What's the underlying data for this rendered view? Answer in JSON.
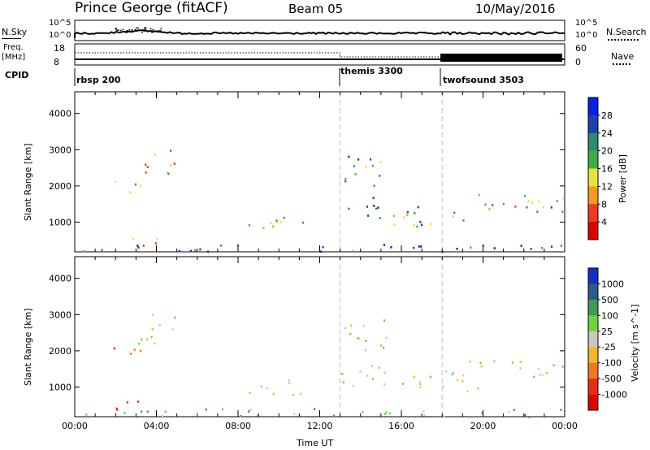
{
  "header": {
    "station": "Prince George (fitACF)",
    "beam": "Beam 05",
    "date": "10/May/2016"
  },
  "top_strip": {
    "nsky_label": "N.Sky",
    "nsearch_label": "N.Search",
    "left_ticks": [
      "10^5",
      "10^0"
    ],
    "right_ticks": [
      "10^5",
      "10^0"
    ],
    "freq_label": "Freq.",
    "freq_unit": "[MHz]",
    "freq_ticks": [
      "18",
      "8"
    ],
    "nave_label": "Nave",
    "nave_ticks": [
      "60",
      "0"
    ],
    "cpid_label": "CPID",
    "cpid_segments": [
      {
        "label": "rbsp 200",
        "start_hour": 0
      },
      {
        "label": "themis 3300",
        "start_hour": 13
      },
      {
        "label": "twofsound 3503",
        "start_hour": 18
      }
    ]
  },
  "colors": {
    "velocity_scatter": "#c8c8c2",
    "axis": "#000000",
    "dash": "#bdbdbd"
  },
  "chart_data": [
    {
      "type": "heatmap",
      "name": "power",
      "xlabel": "",
      "ylabel": "Slant Range [km]",
      "x_ticks": [
        "00:00",
        "04:00",
        "08:00",
        "12:00",
        "16:00",
        "20:00",
        "00:00"
      ],
      "x_range_hours": [
        0,
        24
      ],
      "y_ticks": [
        1000,
        2000,
        3000,
        4000
      ],
      "y_range": [
        180,
        4600
      ],
      "colorbar": {
        "label": "Power [dB]",
        "ticks": [
          "4",
          "8",
          "12",
          "16",
          "20",
          "24",
          "28"
        ],
        "colors": [
          "#0a1ee6",
          "#1e3fae",
          "#2f8a6e",
          "#37b04a",
          "#e7e33a",
          "#f29c22",
          "#ee3a1e",
          "#e10000"
        ]
      },
      "segment_boundaries_hours": [
        13,
        18
      ],
      "echo_regions": [
        {
          "t": [
            1.7,
            3.2
          ],
          "r": [
            1700,
            2200
          ],
          "level": 0.45
        },
        {
          "t": [
            3.0,
            4.9
          ],
          "r": [
            2200,
            3150
          ],
          "level": 0.6
        },
        {
          "t": [
            1.8,
            4.4
          ],
          "r": [
            350,
            650
          ],
          "level": 0.75
        },
        {
          "t": [
            8.5,
            11.3
          ],
          "r": [
            800,
            1300
          ],
          "level": 0.55
        },
        {
          "t": [
            13.0,
            15.0
          ],
          "r": [
            1000,
            1700
          ],
          "level": 0.25
        },
        {
          "t": [
            13.2,
            15.3
          ],
          "r": [
            1900,
            2900
          ],
          "level": 0.3
        },
        {
          "t": [
            15.0,
            20.0
          ],
          "r": [
            900,
            1450
          ],
          "level": 0.35
        },
        {
          "t": [
            18.0,
            24.0
          ],
          "r": [
            1300,
            1800
          ],
          "level": 0.5
        },
        {
          "t": [
            0.3,
            24.0
          ],
          "r": [
            200,
            420
          ],
          "level": 0.15
        }
      ]
    },
    {
      "type": "heatmap",
      "name": "velocity",
      "xlabel": "Time UT",
      "ylabel": "Slant Range [km]",
      "x_ticks": [
        "00:00",
        "04:00",
        "08:00",
        "12:00",
        "16:00",
        "20:00",
        "00:00"
      ],
      "x_range_hours": [
        0,
        24
      ],
      "y_ticks": [
        1000,
        2000,
        3000,
        4000
      ],
      "y_range": [
        180,
        4600
      ],
      "colorbar": {
        "label": "Velocity [m s^-1]",
        "ticks": [
          "1000",
          "500",
          "100",
          "25",
          "-25",
          "-100",
          "-500",
          "-1000"
        ],
        "colors": [
          "#1530c8",
          "#2b5a8c",
          "#3e9a55",
          "#6ed23a",
          "#c8c8c2",
          "#f2b628",
          "#f2781e",
          "#ee2a14",
          "#e10000"
        ]
      },
      "segment_boundaries_hours": [
        13,
        18
      ],
      "echo_regions": [
        {
          "t": [
            1.7,
            3.2
          ],
          "r": [
            1700,
            2200
          ],
          "velocity": -300
        },
        {
          "t": [
            3.0,
            4.9
          ],
          "r": [
            2200,
            3150
          ],
          "velocity": 0
        },
        {
          "t": [
            1.8,
            4.4
          ],
          "r": [
            350,
            650
          ],
          "velocity": -400
        },
        {
          "t": [
            8.5,
            11.3
          ],
          "r": [
            800,
            1300
          ],
          "velocity": 0
        },
        {
          "t": [
            13.0,
            15.0
          ],
          "r": [
            1000,
            1700
          ],
          "velocity": 0
        },
        {
          "t": [
            13.2,
            15.3
          ],
          "r": [
            1900,
            2900
          ],
          "velocity": 0
        },
        {
          "t": [
            15.0,
            20.0
          ],
          "r": [
            900,
            1450
          ],
          "velocity": 10
        },
        {
          "t": [
            18.0,
            24.0
          ],
          "r": [
            1300,
            1800
          ],
          "velocity": 0
        },
        {
          "t": [
            0.3,
            24.0
          ],
          "r": [
            200,
            420
          ],
          "velocity": 40
        }
      ]
    }
  ]
}
